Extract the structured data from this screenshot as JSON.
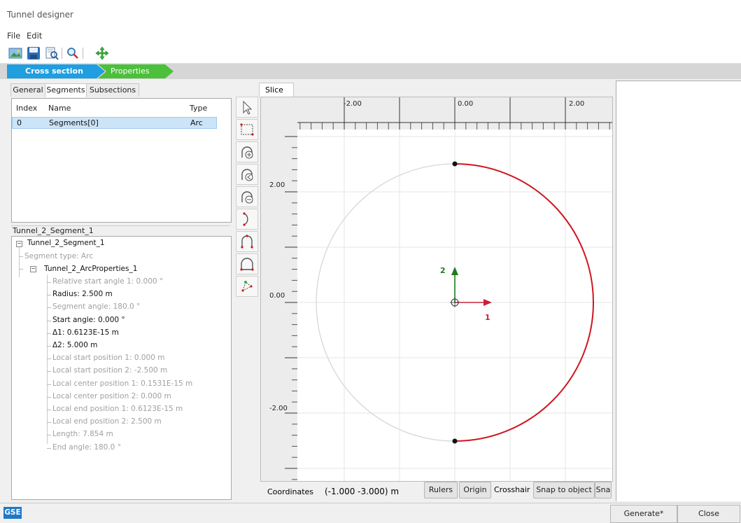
{
  "window": {
    "title": "Tunnel designer"
  },
  "menu": {
    "items": [
      "File",
      "Edit"
    ]
  },
  "steps": {
    "step1": "Cross section",
    "step2": "Properties"
  },
  "left_tabs": [
    "General",
    "Segments",
    "Subsections"
  ],
  "segments_table": {
    "headers": [
      "Index",
      "Name",
      "Type"
    ],
    "rows": [
      {
        "index": "0",
        "name": "Segments[0]",
        "type": "Arc"
      }
    ]
  },
  "properties": {
    "header": "Tunnel_2_Segment_1",
    "root": "Tunnel_2_Segment_1",
    "segment_type": "Segment type: Arc",
    "arc_node": "Tunnel_2_ArcProperties_1",
    "items": [
      {
        "text": "Relative start angle 1: 0.000 °",
        "style": "dim"
      },
      {
        "text": "Radius: 2.500 m",
        "style": "bold"
      },
      {
        "text": "Segment angle: 180.0 °",
        "style": "dim"
      },
      {
        "text": "Start angle: 0.000 °",
        "style": "bold"
      },
      {
        "text": "Δ1: 0.6123E-15 m",
        "style": "bold"
      },
      {
        "text": "Δ2: 5.000 m",
        "style": "bold"
      },
      {
        "text": "Local start position 1: 0.000 m",
        "style": "dim"
      },
      {
        "text": "Local start position 2: -2.500 m",
        "style": "dim"
      },
      {
        "text": "Local center position 1: 0.1531E-15 m",
        "style": "dim"
      },
      {
        "text": "Local center position 2: 0.000 m",
        "style": "dim"
      },
      {
        "text": "Local end position 1: 0.6123E-15 m",
        "style": "dim"
      },
      {
        "text": "Local end position 2: 2.500 m",
        "style": "dim"
      },
      {
        "text": "Length: 7.854 m",
        "style": "dim"
      },
      {
        "text": "End angle: 180.0 °",
        "style": "dim"
      }
    ]
  },
  "slice": {
    "tab_label": "Slice",
    "ruler_top": [
      "-2.00",
      "0.00",
      "2.00"
    ],
    "ruler_left": [
      "2.00",
      "0.00",
      "-2.00"
    ],
    "axis_label_1": "1",
    "axis_label_2": "2"
  },
  "status": {
    "coordinates_label": "Coordinates",
    "coordinates_value": "(-1.000 -3.000) m",
    "rulers": "Rulers",
    "origin": "Origin",
    "crosshair": "Crosshair",
    "snap_to_object": "Snap to object",
    "snap_truncated": "Sna"
  },
  "bottom": {
    "gse": "GSE",
    "generate": "Generate*",
    "close": "Close"
  },
  "colors": {
    "step_active": "#1f9ee0",
    "step_inactive": "#4cbf3b",
    "arc": "#d0161e",
    "axis1": "#c8203a",
    "axis2": "#1e7b1e"
  }
}
